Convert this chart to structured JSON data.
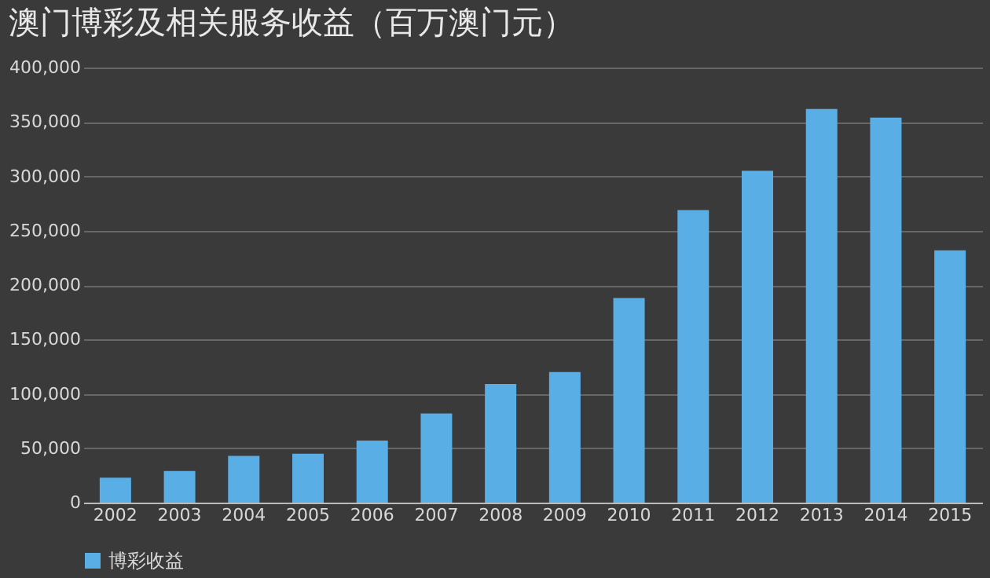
{
  "chart_data": {
    "type": "bar",
    "title": "澳门博彩及相关服务收益（百万澳门元）",
    "categories": [
      "2002",
      "2003",
      "2004",
      "2005",
      "2006",
      "2007",
      "2008",
      "2009",
      "2010",
      "2011",
      "2012",
      "2013",
      "2014",
      "2015"
    ],
    "series": [
      {
        "name": "博彩收益",
        "color": "#5aaee6",
        "values": [
          23000,
          29000,
          43000,
          45000,
          57000,
          82000,
          109000,
          120000,
          188000,
          269000,
          305000,
          362000,
          354000,
          232000
        ]
      }
    ],
    "ylim": [
      0,
      400000
    ],
    "yticks": [
      0,
      {
        "value": 50000,
        "label": "50,000"
      },
      {
        "value": 100000,
        "label": "100,000"
      },
      {
        "value": 150000,
        "label": "150,000"
      },
      {
        "value": 200000,
        "label": "200,000"
      },
      {
        "value": 250000,
        "label": "250,000"
      },
      {
        "value": 300000,
        "label": "300,000"
      },
      {
        "value": 350000,
        "label": "350,000"
      },
      {
        "value": 400000,
        "label": "400,000"
      }
    ],
    "grid": "y",
    "legend": "bottom"
  }
}
